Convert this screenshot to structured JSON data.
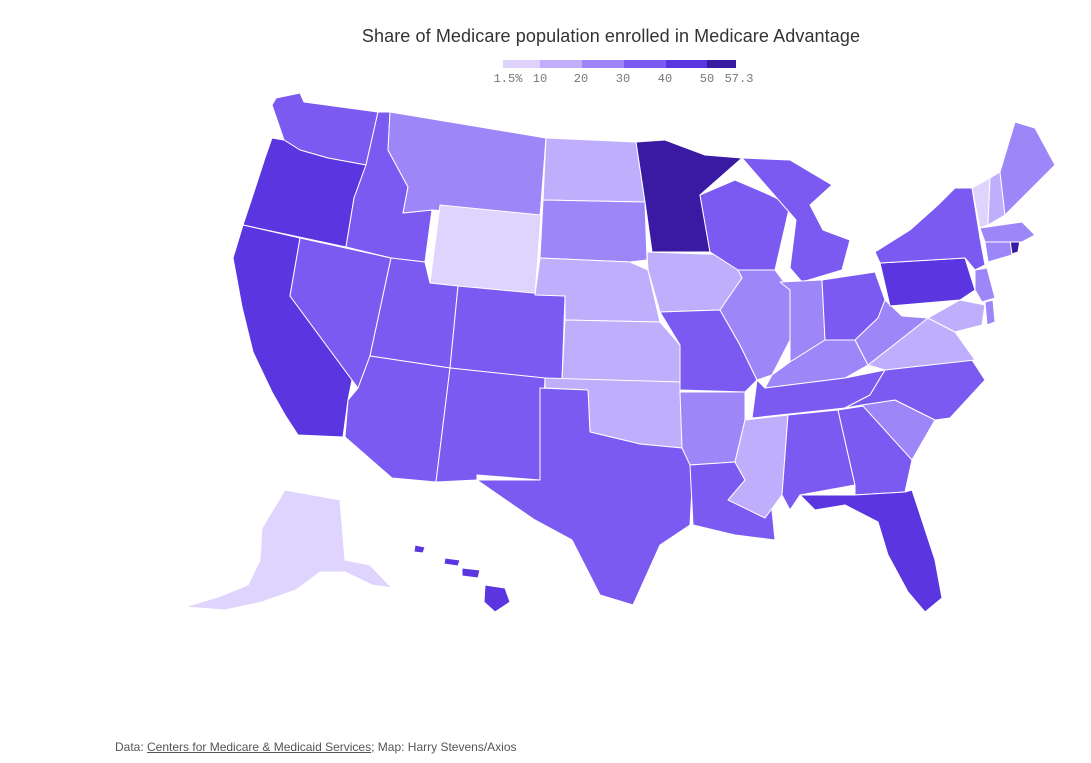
{
  "title": "Share of Medicare population enrolled in Medicare Advantage",
  "legend": {
    "ticks": [
      "1.5%",
      "10",
      "20",
      "30",
      "40",
      "50",
      "57.3"
    ],
    "colors": [
      "#ded4fd",
      "#bfaefb",
      "#9d86f8",
      "#7b5af2",
      "#5a35e0",
      "#3a1aa3"
    ]
  },
  "source": {
    "prefix": "Data: ",
    "link_text": "Centers for Medicare & Medicaid Services",
    "suffix": "; Map: Harry Stevens/Axios"
  }
}
